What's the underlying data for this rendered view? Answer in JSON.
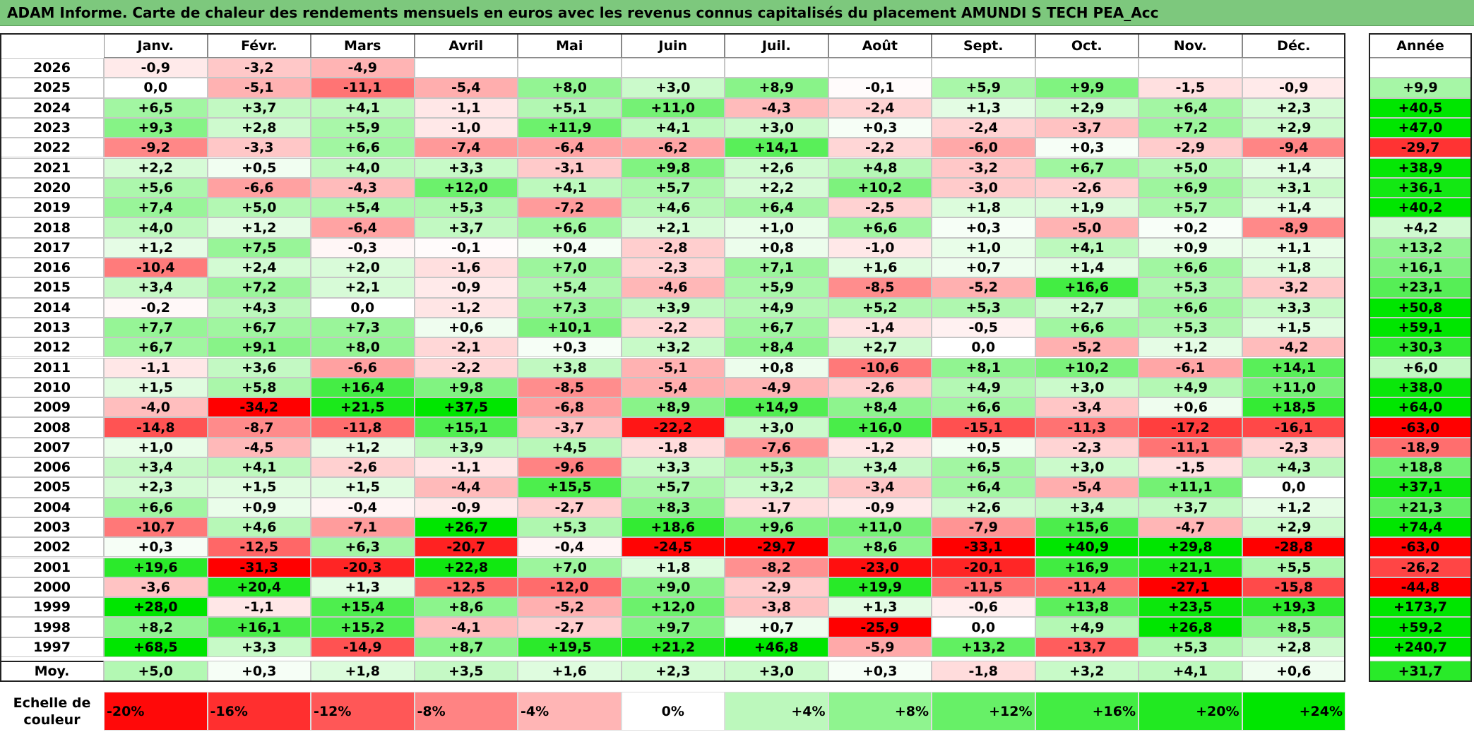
{
  "title": "ADAM Informe. Carte de chaleur des rendements mensuels en euros avec les revenus connus capitalisés du placement AMUNDI S TECH PEA_Acc",
  "chart_data": {
    "type": "heatmap",
    "months": [
      "Janv.",
      "Févr.",
      "Mars",
      "Avril",
      "Mai",
      "Juin",
      "Juil.",
      "Août",
      "Sept.",
      "Oct.",
      "Nov.",
      "Déc."
    ],
    "year_header": "Année",
    "rows": [
      {
        "year": "2026",
        "values": [
          -0.9,
          -3.2,
          -4.9,
          null,
          null,
          null,
          null,
          null,
          null,
          null,
          null,
          null
        ],
        "annual": null
      },
      {
        "year": "2025",
        "values": [
          0.0,
          -5.1,
          -11.1,
          -5.4,
          8.0,
          3.0,
          8.9,
          -0.1,
          5.9,
          9.9,
          -1.5,
          -0.9
        ],
        "annual": 9.9
      },
      {
        "year": "2024",
        "values": [
          6.5,
          3.7,
          4.1,
          -1.1,
          5.1,
          11.0,
          -4.3,
          -2.4,
          1.3,
          2.9,
          6.4,
          2.3
        ],
        "annual": 40.5
      },
      {
        "year": "2023",
        "values": [
          9.3,
          2.8,
          5.9,
          -1.0,
          11.9,
          4.1,
          3.0,
          0.3,
          -2.4,
          -3.7,
          7.2,
          2.9
        ],
        "annual": 47.0
      },
      {
        "year": "2022",
        "values": [
          -9.2,
          -3.3,
          6.6,
          -7.4,
          -6.4,
          -6.2,
          14.1,
          -2.2,
          -6.0,
          0.3,
          -2.9,
          -9.4
        ],
        "annual": -29.7
      },
      {
        "year": "2021",
        "values": [
          2.2,
          0.5,
          4.0,
          3.3,
          -3.1,
          9.8,
          2.6,
          4.8,
          -3.2,
          6.7,
          5.0,
          1.4
        ],
        "annual": 38.9
      },
      {
        "year": "2020",
        "values": [
          5.6,
          -6.6,
          -4.3,
          12.0,
          4.1,
          5.7,
          2.2,
          10.2,
          -3.0,
          -2.6,
          6.9,
          3.1
        ],
        "annual": 36.1
      },
      {
        "year": "2019",
        "values": [
          7.4,
          5.0,
          5.4,
          5.3,
          -7.2,
          4.6,
          6.4,
          -2.5,
          1.8,
          1.9,
          5.7,
          1.4
        ],
        "annual": 40.2
      },
      {
        "year": "2018",
        "values": [
          4.0,
          1.2,
          -6.4,
          3.7,
          6.6,
          2.1,
          1.0,
          6.6,
          0.3,
          -5.0,
          0.2,
          -8.9
        ],
        "annual": 4.2
      },
      {
        "year": "2017",
        "values": [
          1.2,
          7.5,
          -0.3,
          -0.1,
          0.4,
          -2.8,
          0.8,
          -1.0,
          1.0,
          4.1,
          0.9,
          1.1
        ],
        "annual": 13.2
      },
      {
        "year": "2016",
        "values": [
          -10.4,
          2.4,
          2.0,
          -1.6,
          7.0,
          -2.3,
          7.1,
          1.6,
          0.7,
          1.4,
          6.6,
          1.8
        ],
        "annual": 16.1
      },
      {
        "year": "2015",
        "values": [
          3.4,
          7.2,
          2.1,
          -0.9,
          5.4,
          -4.6,
          5.9,
          -8.5,
          -5.2,
          16.6,
          5.3,
          -3.2
        ],
        "annual": 23.1
      },
      {
        "year": "2014",
        "values": [
          -0.2,
          4.3,
          0.0,
          -1.2,
          7.3,
          3.9,
          4.9,
          5.2,
          5.3,
          2.7,
          6.6,
          3.3
        ],
        "annual": 50.8
      },
      {
        "year": "2013",
        "values": [
          7.7,
          6.7,
          7.3,
          0.6,
          10.1,
          -2.2,
          6.7,
          -1.4,
          -0.5,
          6.6,
          5.3,
          1.5
        ],
        "annual": 59.1
      },
      {
        "year": "2012",
        "values": [
          6.7,
          9.1,
          8.0,
          -2.1,
          0.3,
          3.2,
          8.4,
          2.7,
          0.0,
          -5.2,
          1.2,
          -4.2
        ],
        "annual": 30.3
      },
      {
        "year": "2011",
        "values": [
          -1.1,
          3.6,
          -6.6,
          -2.2,
          3.8,
          -5.1,
          0.8,
          -10.6,
          8.1,
          10.2,
          -6.1,
          14.1
        ],
        "annual": 6.0
      },
      {
        "year": "2010",
        "values": [
          1.5,
          5.8,
          16.4,
          9.8,
          -8.5,
          -5.4,
          -4.9,
          -2.6,
          4.9,
          3.0,
          4.9,
          11.0
        ],
        "annual": 38.0
      },
      {
        "year": "2009",
        "values": [
          -4.0,
          -34.2,
          21.5,
          37.5,
          -6.8,
          8.9,
          14.9,
          8.4,
          6.6,
          -3.4,
          0.6,
          18.5
        ],
        "annual": 64.0
      },
      {
        "year": "2008",
        "values": [
          -14.8,
          -8.7,
          -11.8,
          15.1,
          -3.7,
          -22.2,
          3.0,
          16.0,
          -15.1,
          -11.3,
          -17.2,
          -16.1
        ],
        "annual": -63.0
      },
      {
        "year": "2007",
        "values": [
          1.0,
          -4.5,
          1.2,
          3.9,
          4.5,
          -1.8,
          -7.6,
          -1.2,
          0.5,
          -2.3,
          -11.1,
          -2.3
        ],
        "annual": -18.9
      },
      {
        "year": "2006",
        "values": [
          3.4,
          4.1,
          -2.6,
          -1.1,
          -9.6,
          3.3,
          5.3,
          3.4,
          6.5,
          3.0,
          -1.5,
          4.3
        ],
        "annual": 18.8
      },
      {
        "year": "2005",
        "values": [
          2.3,
          1.5,
          1.5,
          -4.4,
          15.5,
          5.7,
          3.2,
          -3.4,
          6.4,
          -5.4,
          11.1,
          0.0
        ],
        "annual": 37.1
      },
      {
        "year": "2004",
        "values": [
          6.6,
          0.9,
          -0.4,
          -0.9,
          -2.7,
          8.3,
          -1.7,
          -0.9,
          2.6,
          3.4,
          3.7,
          1.2
        ],
        "annual": 21.3
      },
      {
        "year": "2003",
        "values": [
          -10.7,
          4.6,
          -7.1,
          26.7,
          5.3,
          18.6,
          9.6,
          11.0,
          -7.9,
          15.6,
          -4.7,
          2.9
        ],
        "annual": 74.4
      },
      {
        "year": "2002",
        "values": [
          0.3,
          -12.5,
          6.3,
          -20.7,
          -0.4,
          -24.5,
          -29.7,
          8.6,
          -33.1,
          40.9,
          29.8,
          -28.8
        ],
        "annual": -63.0
      },
      {
        "year": "2001",
        "values": [
          19.6,
          -31.3,
          -20.3,
          22.8,
          7.0,
          1.8,
          -8.2,
          -23.0,
          -20.1,
          16.9,
          21.1,
          5.5
        ],
        "annual": -26.2
      },
      {
        "year": "2000",
        "values": [
          -3.6,
          20.4,
          1.3,
          -12.5,
          -12.0,
          9.0,
          -2.9,
          19.9,
          -11.5,
          -11.4,
          -27.1,
          -15.8
        ],
        "annual": -44.8
      },
      {
        "year": "1999",
        "values": [
          28.0,
          -1.1,
          15.4,
          8.6,
          -5.2,
          12.0,
          -3.8,
          1.3,
          -0.6,
          13.8,
          23.5,
          19.3
        ],
        "annual": 173.7
      },
      {
        "year": "1998",
        "values": [
          8.2,
          16.1,
          15.2,
          -4.1,
          -2.7,
          9.7,
          0.7,
          -25.9,
          0.0,
          4.9,
          26.8,
          8.5
        ],
        "annual": 59.2
      },
      {
        "year": "1997",
        "values": [
          68.5,
          3.3,
          -14.9,
          8.7,
          19.5,
          21.2,
          46.8,
          -5.9,
          13.2,
          -13.7,
          5.3,
          2.8
        ],
        "annual": 240.7
      }
    ],
    "average": {
      "label": "Moy.",
      "values": [
        5.0,
        0.3,
        1.8,
        3.5,
        1.6,
        2.3,
        3.0,
        0.3,
        -1.8,
        3.2,
        4.1,
        0.6
      ],
      "annual": 31.7
    },
    "scale": {
      "label": "Echelle de couleur",
      "steps": [
        -20,
        -16,
        -12,
        -8,
        -4,
        0,
        4,
        8,
        12,
        16,
        20,
        24
      ],
      "step_labels": [
        "-20%",
        "-16%",
        "-12%",
        "-8%",
        "-4%",
        "0%",
        "+4%",
        "+8%",
        "+12%",
        "+16%",
        "+20%",
        "+24%"
      ]
    }
  },
  "colors": {
    "title_bg": "#7dc87d",
    "neg_max": "#ff0000",
    "zero": "#ffffff",
    "pos_max": "#00e600"
  }
}
